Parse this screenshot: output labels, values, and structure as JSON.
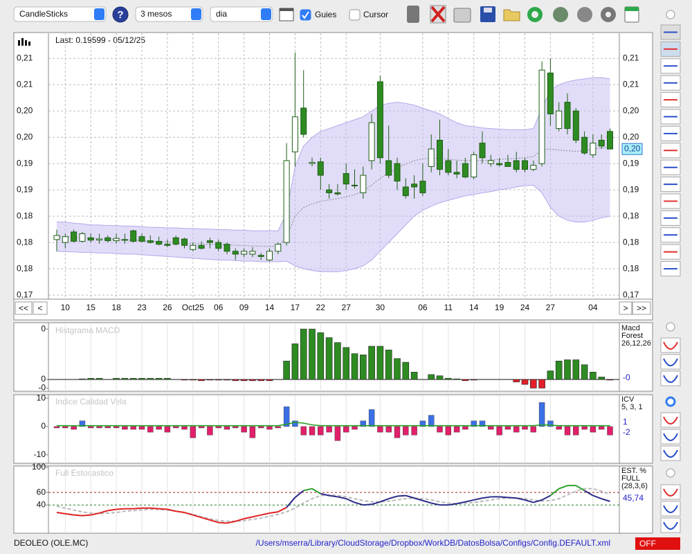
{
  "toolbar": {
    "chart_type": "CandleSticks",
    "period": "3 mesos",
    "interval": "dia",
    "guides": "Guies",
    "cursor": "Cursor",
    "guides_checked": true,
    "cursor_checked": false
  },
  "main": {
    "type": "candlestick",
    "title": "Last: 0.19599 - 05/12/25",
    "categories": [
      null,
      "10",
      null,
      null,
      "15",
      null,
      null,
      "18",
      null,
      null,
      "23",
      null,
      null,
      "26",
      null,
      null,
      "Oct25",
      null,
      null,
      "06",
      null,
      null,
      "09",
      null,
      null,
      "14",
      null,
      null,
      "17",
      null,
      null,
      "22",
      null,
      null,
      "27",
      null,
      null,
      null,
      "30",
      null,
      null,
      null,
      null,
      "06",
      null,
      null,
      "11",
      null,
      null,
      "14",
      null,
      null,
      "19",
      null,
      null,
      "24",
      null,
      null,
      "27",
      null,
      null,
      null,
      null,
      "04",
      null,
      null
    ],
    "ohlc": [
      [
        0.1805,
        0.1822,
        0.1785,
        0.1812
      ],
      [
        0.18,
        0.1815,
        0.179,
        0.181
      ],
      [
        0.1818,
        0.1822,
        0.18,
        0.1802
      ],
      [
        0.1802,
        0.1818,
        0.18,
        0.1815
      ],
      [
        0.1808,
        0.1815,
        0.18,
        0.1804
      ],
      [
        0.1804,
        0.1815,
        0.1798,
        0.1806
      ],
      [
        0.1808,
        0.1812,
        0.18,
        0.1803
      ],
      [
        0.1803,
        0.1815,
        0.1798,
        0.1807
      ],
      [
        0.1805,
        0.1815,
        0.1798,
        0.1804
      ],
      [
        0.182,
        0.1822,
        0.18,
        0.1802
      ],
      [
        0.181,
        0.1815,
        0.18,
        0.1802
      ],
      [
        0.1803,
        0.1812,
        0.1798,
        0.18
      ],
      [
        0.1802,
        0.181,
        0.1795,
        0.1797
      ],
      [
        0.1797,
        0.1805,
        0.1792,
        0.1795
      ],
      [
        0.1808,
        0.1812,
        0.1795,
        0.1797
      ],
      [
        0.1806,
        0.1808,
        0.179,
        0.1795
      ],
      [
        0.1788,
        0.18,
        0.1785,
        0.1795
      ],
      [
        0.1795,
        0.1802,
        0.1788,
        0.179
      ],
      [
        0.1803,
        0.1808,
        0.179,
        0.18
      ],
      [
        0.18,
        0.1805,
        0.1785,
        0.179
      ],
      [
        0.1797,
        0.18,
        0.178,
        0.1785
      ],
      [
        0.1785,
        0.179,
        0.177,
        0.178
      ],
      [
        0.178,
        0.179,
        0.1775,
        0.1785
      ],
      [
        0.178,
        0.1792,
        0.1775,
        0.1785
      ],
      [
        0.1778,
        0.1782,
        0.177,
        0.1776
      ],
      [
        0.177,
        0.179,
        0.1768,
        0.1785
      ],
      [
        0.1785,
        0.18,
        0.178,
        0.1797
      ],
      [
        0.18,
        0.197,
        0.1795,
        0.194
      ],
      [
        0.1955,
        0.2125,
        0.193,
        0.2015
      ],
      [
        0.203,
        0.2095,
        0.198,
        0.1985
      ],
      [
        0.1935,
        0.1945,
        0.193,
        0.1937
      ],
      [
        0.1938,
        0.1945,
        0.189,
        0.1915
      ],
      [
        0.189,
        0.19,
        0.1875,
        0.1885
      ],
      [
        0.1885,
        0.19,
        0.188,
        0.1883
      ],
      [
        0.1918,
        0.1935,
        0.189,
        0.19
      ],
      [
        0.1898,
        0.1925,
        0.1892,
        0.1897
      ],
      [
        0.1885,
        0.193,
        0.1875,
        0.1915
      ],
      [
        0.194,
        0.202,
        0.1925,
        0.2005
      ],
      [
        0.2075,
        0.2085,
        0.1935,
        0.1945
      ],
      [
        0.194,
        0.2,
        0.191,
        0.1915
      ],
      [
        0.1935,
        0.1945,
        0.189,
        0.1905
      ],
      [
        0.1895,
        0.191,
        0.1875,
        0.188
      ],
      [
        0.19,
        0.1915,
        0.1875,
        0.1895
      ],
      [
        0.1905,
        0.1935,
        0.188,
        0.1885
      ],
      [
        0.193,
        0.1985,
        0.192,
        0.196
      ],
      [
        0.1975,
        0.201,
        0.1915,
        0.1925
      ],
      [
        0.194,
        0.196,
        0.1915,
        0.192
      ],
      [
        0.192,
        0.194,
        0.191,
        0.1917
      ],
      [
        0.1935,
        0.1945,
        0.191,
        0.1912
      ],
      [
        0.1912,
        0.1955,
        0.1908,
        0.195
      ],
      [
        0.197,
        0.199,
        0.1935,
        0.1945
      ],
      [
        0.1935,
        0.195,
        0.193,
        0.194
      ],
      [
        0.1935,
        0.1945,
        0.193,
        0.1933
      ],
      [
        0.1937,
        0.195,
        0.193,
        0.193
      ],
      [
        0.194,
        0.1955,
        0.192,
        0.1925
      ],
      [
        0.194,
        0.1945,
        0.192,
        0.1925
      ],
      [
        0.1925,
        0.194,
        0.1922,
        0.1932
      ],
      [
        0.1935,
        0.211,
        0.193,
        0.2095
      ],
      [
        0.209,
        0.2115,
        0.2,
        0.202
      ],
      [
        0.1995,
        0.204,
        0.199,
        0.2025
      ],
      [
        0.204,
        0.2055,
        0.1985,
        0.1995
      ],
      [
        0.2025,
        0.203,
        0.197,
        0.1975
      ],
      [
        0.198,
        0.199,
        0.195,
        0.1953
      ],
      [
        0.195,
        0.1985,
        0.1945,
        0.197
      ],
      [
        0.1975,
        0.1985,
        0.196,
        0.1965
      ],
      [
        0.199,
        0.1995,
        0.196,
        0.19599
      ]
    ],
    "bands": {
      "upper": [
        0.1835,
        0.1835,
        0.1833,
        0.1832,
        0.183,
        0.183,
        0.1829,
        0.1829,
        0.1828,
        0.1828,
        0.1827,
        0.1826,
        0.1826,
        0.1825,
        0.1825,
        0.1824,
        0.1824,
        0.1823,
        0.1823,
        0.1822,
        0.1822,
        0.1821,
        0.1821,
        0.182,
        0.182,
        0.182,
        0.182,
        0.185,
        0.193,
        0.1965,
        0.198,
        0.199,
        0.1995,
        0.2,
        0.2005,
        0.201,
        0.2015,
        0.2025,
        0.2035,
        0.2038,
        0.204,
        0.2038,
        0.2035,
        0.203,
        0.2025,
        0.202,
        0.2012,
        0.2005,
        0.2,
        0.1998,
        0.1996,
        0.1995,
        0.1994,
        0.1993,
        0.1993,
        0.1993,
        0.1995,
        0.203,
        0.206,
        0.207,
        0.2075,
        0.2078,
        0.208,
        0.2082,
        0.2082,
        0.208
      ],
      "middle": [
        0.181,
        0.181,
        0.1809,
        0.1808,
        0.1807,
        0.1806,
        0.1806,
        0.1805,
        0.1804,
        0.1804,
        0.1803,
        0.1802,
        0.1801,
        0.1801,
        0.18,
        0.1799,
        0.1798,
        0.1797,
        0.1797,
        0.1796,
        0.1796,
        0.1795,
        0.1795,
        0.1794,
        0.1794,
        0.1793,
        0.1794,
        0.1809,
        0.1845,
        0.186,
        0.1866,
        0.187,
        0.1873,
        0.1875,
        0.1878,
        0.1882,
        0.1888,
        0.1898,
        0.191,
        0.1919,
        0.1928,
        0.1934,
        0.194,
        0.1943,
        0.1944,
        0.1944,
        0.1942,
        0.1941,
        0.194,
        0.194,
        0.194,
        0.1941,
        0.1942,
        0.1943,
        0.1944,
        0.1945,
        0.1947,
        0.1958,
        0.196,
        0.1958,
        0.1957,
        0.1956,
        0.1957,
        0.196,
        0.1962,
        0.1963
      ],
      "lower": [
        0.1785,
        0.1784,
        0.1784,
        0.1783,
        0.1783,
        0.1782,
        0.1782,
        0.1781,
        0.178,
        0.178,
        0.1779,
        0.1778,
        0.1777,
        0.1776,
        0.1775,
        0.1774,
        0.1773,
        0.1772,
        0.1771,
        0.177,
        0.177,
        0.1769,
        0.1768,
        0.1768,
        0.1767,
        0.1767,
        0.1767,
        0.1768,
        0.176,
        0.1755,
        0.1752,
        0.175,
        0.175,
        0.175,
        0.1752,
        0.1755,
        0.176,
        0.177,
        0.1785,
        0.18,
        0.1815,
        0.183,
        0.1845,
        0.1855,
        0.1862,
        0.1868,
        0.1872,
        0.1876,
        0.188,
        0.1882,
        0.1885,
        0.1887,
        0.189,
        0.1892,
        0.1895,
        0.1897,
        0.1898,
        0.1885,
        0.186,
        0.1845,
        0.1838,
        0.1835,
        0.1835,
        0.1838,
        0.1842,
        0.1845
      ]
    },
    "colors": {
      "up": "#ffffff",
      "down": "#2e8b22",
      "edge": "#1d5e14",
      "band": "#c8bff2"
    },
    "ylim": [
      0.1703,
      0.2158
    ],
    "yticks": [
      {
        "value": 0.171,
        "label": "0,17"
      },
      {
        "value": 0.1755,
        "label": "0,18"
      },
      {
        "value": 0.18,
        "label": "0,18"
      },
      {
        "value": 0.1845,
        "label": "0,18"
      },
      {
        "value": 0.189,
        "label": "0,19"
      },
      {
        "value": 0.1935,
        "label": "0,19"
      },
      {
        "value": 0.198,
        "label": "0,20"
      },
      {
        "value": 0.2025,
        "label": "0,20"
      },
      {
        "value": 0.207,
        "label": "0,21"
      },
      {
        "value": 0.2115,
        "label": "0,21"
      }
    ],
    "grid": true,
    "last_label": "0,20",
    "nav": [
      "<<",
      "<",
      ">",
      ">>"
    ]
  },
  "macd": {
    "type": "bar",
    "title": "Histgrama MACD",
    "legend": [
      "Macd",
      "Forest",
      "26,12,26"
    ],
    "last_label": "-0",
    "values": [
      0,
      0,
      0,
      5e-05,
      0.0001,
      0.0001,
      0,
      0.0001,
      0.0001,
      0.0001,
      0.0001,
      0.0001,
      0.0001,
      0.0001,
      0,
      -5e-05,
      -5e-05,
      -0.0001,
      -5e-05,
      -5e-05,
      -5e-05,
      -0.0001,
      -0.0001,
      -0.0001,
      -0.0001,
      -0.0001,
      0,
      0.0015,
      0.0029,
      0.0041,
      0.0041,
      0.0038,
      0.0034,
      0.003,
      0.0026,
      0.0021,
      0.002,
      0.0027,
      0.0027,
      0.0024,
      0.0017,
      0.0014,
      0.0006,
      0,
      0.0004,
      0.0003,
      0.0001,
      5e-05,
      -0.0001,
      -5e-05,
      0,
      0,
      0,
      0,
      -0.0002,
      -0.0004,
      -0.0007,
      -0.0007,
      0.0007,
      0.0015,
      0.0016,
      0.0016,
      0.0012,
      0.0006,
      0.0002,
      -5e-05
    ],
    "colors": {
      "positive": "#2e8b22",
      "negative": "#e0202a"
    },
    "ylim": [
      -0.0009,
      0.0045
    ],
    "yticks": [
      {
        "value": -0.0007,
        "label": "-0"
      },
      {
        "value": 0,
        "label": "0"
      },
      {
        "value": 0.0041,
        "label": "0"
      }
    ]
  },
  "icv": {
    "type": "bar",
    "title": "Indice Calidad Vela",
    "legend": [
      "ICV",
      "5, 3, 1"
    ],
    "last_labels": [
      "1",
      "-2"
    ],
    "values": [
      -0.5,
      -0.5,
      -1,
      2,
      -0.5,
      -0.5,
      -0.5,
      -0.5,
      -1,
      -1,
      -1,
      -2,
      -1,
      -2,
      -0.5,
      -1,
      -4,
      -0.5,
      -3,
      -0.5,
      -1,
      -0.5,
      -2,
      -4,
      -0.5,
      -1,
      -0.5,
      7,
      2,
      -3,
      -3,
      -3,
      -2,
      -5,
      -2,
      -1,
      2,
      6,
      -2,
      -2,
      -4,
      -3,
      -3,
      2,
      4,
      -2,
      -3,
      -2,
      -1,
      2,
      2,
      -1,
      -3,
      -1,
      -2,
      -1,
      -2,
      8.5,
      2,
      -1,
      -3,
      -3,
      -1,
      -2,
      -1,
      -3
    ],
    "signal": [
      0.3,
      0.3,
      0.3,
      0.3,
      0.3,
      0.3,
      0.3,
      0.3,
      0.3,
      0.3,
      0.3,
      0.3,
      0.3,
      0.3,
      0.3,
      0.3,
      0.3,
      0.3,
      0.3,
      0.3,
      0.3,
      0.3,
      0.3,
      0.3,
      0.3,
      0.3,
      0.3,
      0.8,
      1.5,
      1.2,
      0.6,
      0.3,
      0.3,
      0.3,
      0.3,
      0.3,
      0.3,
      0.3,
      0.3,
      0.3,
      0.3,
      0.3,
      0.3,
      0.3,
      0.3,
      0.3,
      0.3,
      0.3,
      0.3,
      0.3,
      0.3,
      0.3,
      0.3,
      0.3,
      0.3,
      0.3,
      0.3,
      0.6,
      0.5,
      0.3,
      0.3,
      0.3,
      0.3,
      0.3,
      0.3,
      0.3
    ],
    "colors": {
      "positive": "#3a6fe6",
      "negative": "#e0206a",
      "signal": "#2aa02a"
    },
    "ylim": [
      -12.5,
      11
    ],
    "yticks": [
      -10,
      0,
      10
    ]
  },
  "stoch": {
    "type": "line",
    "title": "Full Estocastico",
    "legend": [
      "EST. %",
      "FULL",
      "(28,3,6)"
    ],
    "last_label": "45,74",
    "k": [
      28,
      26,
      24,
      23,
      24,
      27,
      31,
      33,
      34,
      34,
      35,
      35,
      34,
      33,
      30,
      28,
      24,
      20,
      16,
      12,
      11,
      14,
      18,
      21,
      24,
      27,
      29,
      36,
      52,
      63,
      66,
      58,
      55,
      53,
      50,
      44,
      40,
      41,
      45,
      50,
      54,
      55,
      51,
      47,
      43,
      40,
      40,
      42,
      45,
      48,
      51,
      53,
      53,
      52,
      51,
      48,
      44,
      48,
      55,
      66,
      71,
      71,
      63,
      55,
      50,
      45.74
    ],
    "d": [
      38,
      35,
      32,
      29,
      27,
      26,
      27,
      28,
      30,
      31,
      32,
      33,
      33,
      32,
      30,
      28,
      25,
      21,
      18,
      15,
      14,
      14,
      15,
      17,
      19,
      22,
      25,
      29,
      35,
      43,
      50,
      55,
      56,
      55,
      53,
      50,
      47,
      45,
      45,
      46,
      48,
      50,
      51,
      50,
      48,
      45,
      43,
      42,
      43,
      44,
      46,
      48,
      50,
      51,
      51,
      50,
      48,
      46,
      47,
      50,
      56,
      62,
      66,
      66,
      62,
      57
    ],
    "levels": {
      "upper": 60,
      "lower": 40
    },
    "colors": {
      "high": "#2ca02c",
      "mid": "#2a2a8a",
      "low": "#e02020",
      "signal": "#b8b8b8"
    },
    "ylim": [
      -4,
      101
    ],
    "yticks": [
      40,
      60,
      100
    ]
  },
  "footer": {
    "symbol": "DEOLEO (OLE.MC)",
    "config_path": "/Users/mserra/Library/CloudStorage/Dropbox/WorkDB/DatosBolsa/Configs/Config.DEFAULT.xml",
    "status": "OFF"
  }
}
